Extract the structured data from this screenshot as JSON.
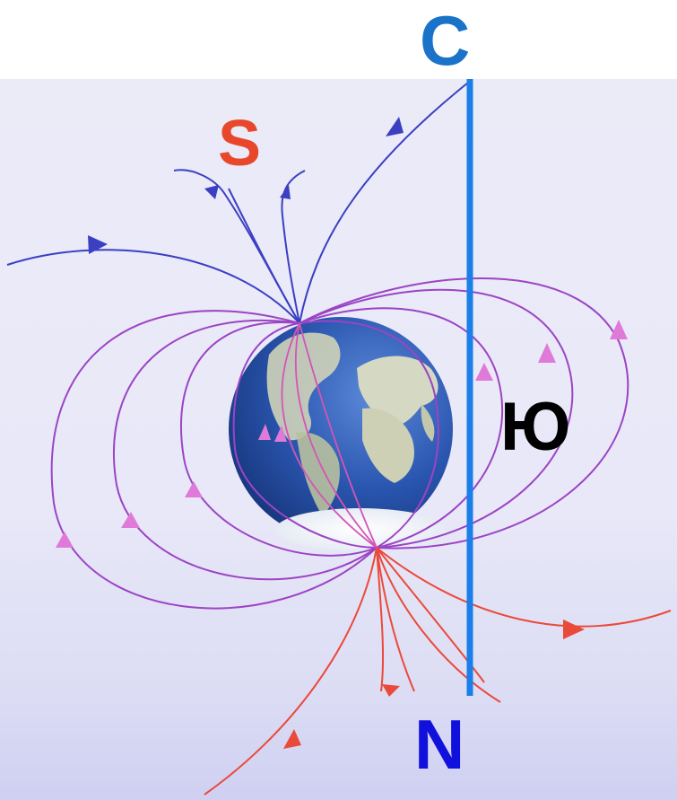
{
  "labels": {
    "top_compass": "С",
    "geo_north_magnetic_pole": "S",
    "right_compass": "Ю",
    "geo_south_magnetic_pole": "N"
  },
  "colors": {
    "compass_line": "#1a7fe8",
    "label_c": "#1a73c9",
    "label_s": "#e8472c",
    "label_n": "#1111dd",
    "label_yu": "#000000",
    "field_blue": "#3b3fc2",
    "field_purple": "#9c44c4",
    "field_magenta": "#d454b8",
    "field_red": "#ea4a3a",
    "arrow_pink": "#e07ad8",
    "ocean": "#2a56b0",
    "land": "#cfd3b8"
  },
  "icons": [
    "earth-globe-icon",
    "field-arrow-icon"
  ]
}
